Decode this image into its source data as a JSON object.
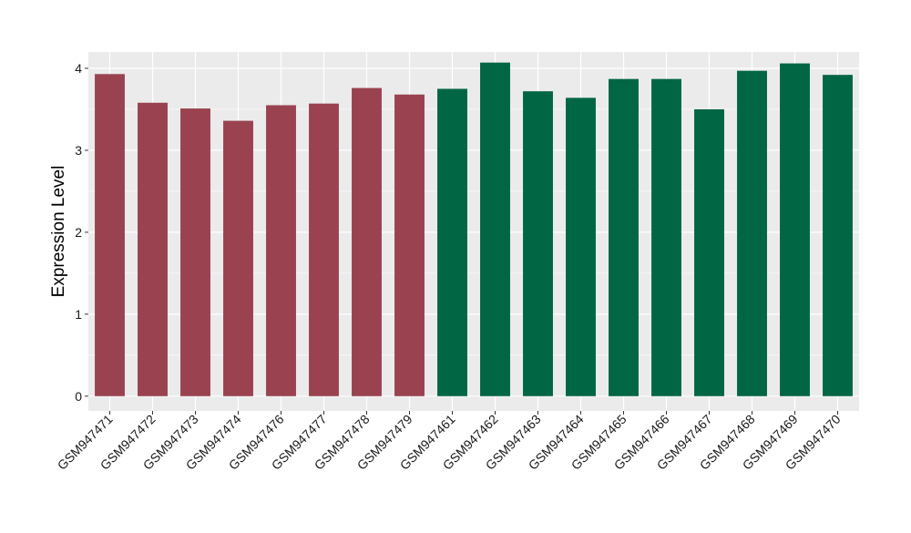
{
  "chart_data": {
    "type": "bar",
    "title": "",
    "xlabel": "",
    "ylabel": "Expression Level",
    "ylim": [
      -0.18,
      4.2
    ],
    "yticks": [
      0,
      1,
      2,
      3,
      4
    ],
    "grid": true,
    "categories": [
      "GSM947471",
      "GSM947472",
      "GSM947473",
      "GSM947474",
      "GSM947476",
      "GSM947477",
      "GSM947478",
      "GSM947479",
      "GSM947461",
      "GSM947462",
      "GSM947463",
      "GSM947464",
      "GSM947465",
      "GSM947466",
      "GSM947467",
      "GSM947468",
      "GSM947469",
      "GSM947470"
    ],
    "values": [
      3.93,
      3.58,
      3.51,
      3.36,
      3.55,
      3.57,
      3.76,
      3.68,
      3.75,
      4.07,
      3.72,
      3.64,
      3.87,
      3.87,
      3.5,
      3.97,
      4.06,
      3.92
    ],
    "bar_colors": [
      "#9a4250",
      "#9a4250",
      "#9a4250",
      "#9a4250",
      "#9a4250",
      "#9a4250",
      "#9a4250",
      "#9a4250",
      "#006644",
      "#006644",
      "#006644",
      "#006644",
      "#006644",
      "#006644",
      "#006644",
      "#006644",
      "#006644",
      "#006644"
    ],
    "panel_background": "#ebebeb",
    "gridline_color": "#ffffff"
  }
}
